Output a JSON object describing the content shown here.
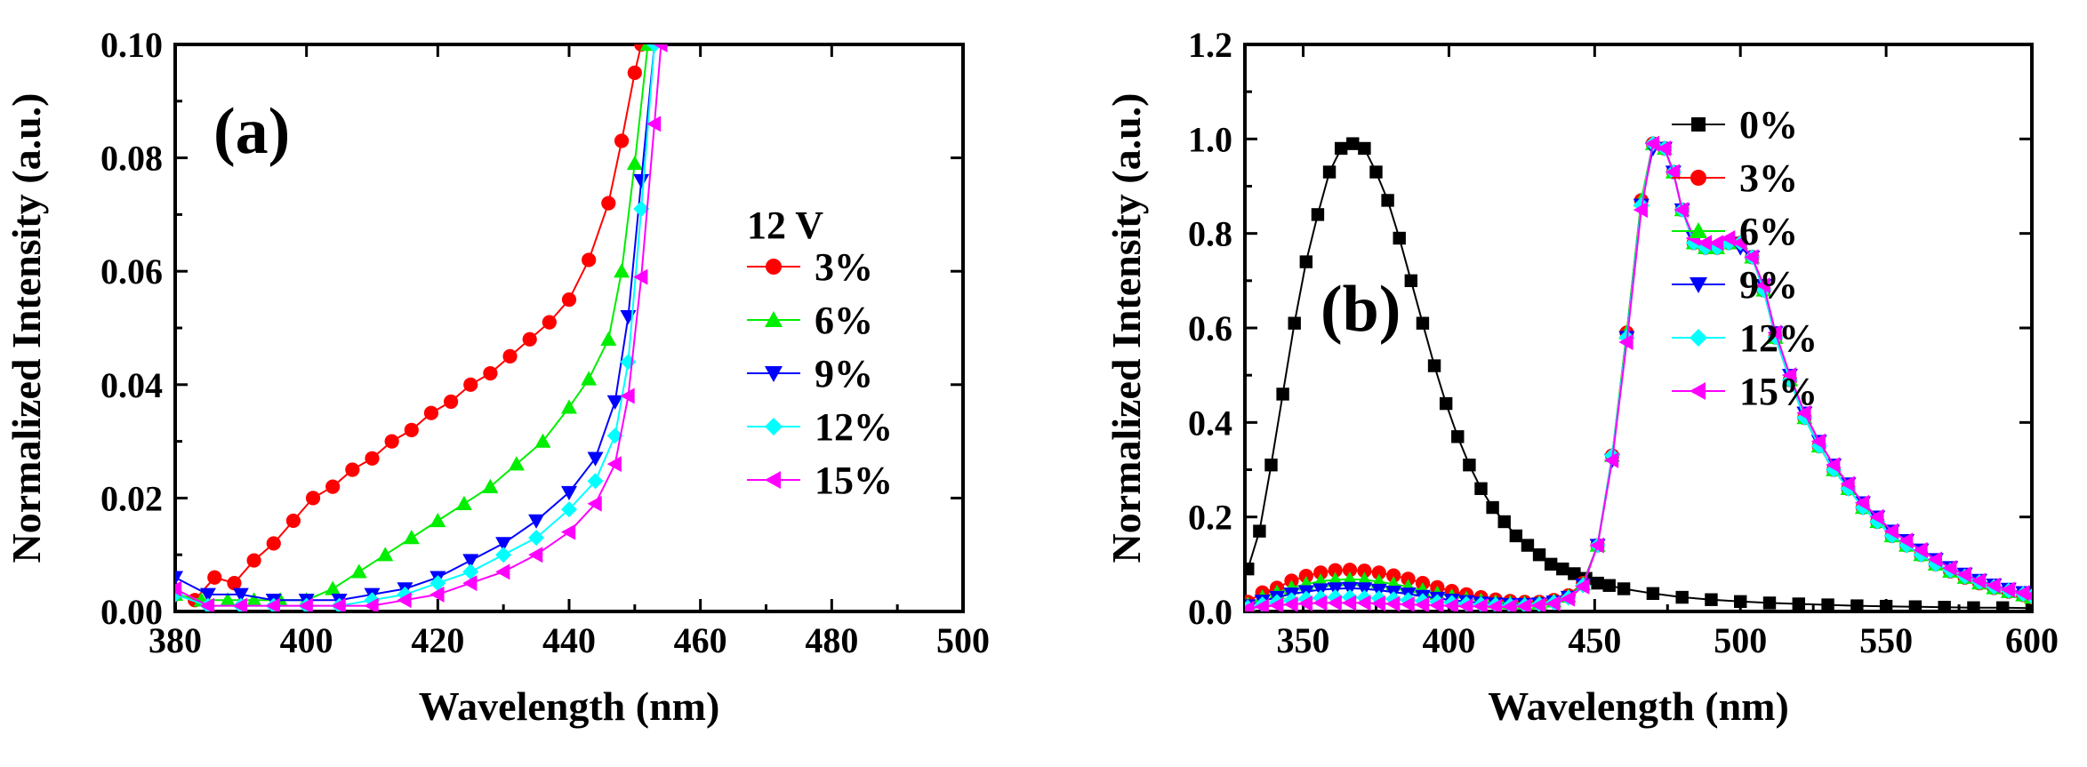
{
  "chart_data": [
    {
      "type": "line",
      "panel_label": "(a)",
      "xlabel": "Wavelength (nm)",
      "ylabel": "Normalized Intensity (a.u.)",
      "xlim": [
        380,
        500
      ],
      "ylim": [
        0,
        0.1
      ],
      "x_ticks": [
        380,
        400,
        420,
        440,
        460,
        480,
        500
      ],
      "y_ticks": [
        0.0,
        0.02,
        0.04,
        0.06,
        0.08,
        0.1
      ],
      "x_tick_labels": [
        "380",
        "400",
        "420",
        "440",
        "460",
        "480",
        "500"
      ],
      "y_tick_labels": [
        "0.00",
        "0.02",
        "0.04",
        "0.06",
        "0.08",
        "0.10"
      ],
      "legend_title": "12 V",
      "legend_position": "center-right",
      "series": [
        {
          "name": "3%",
          "color": "#ff0000",
          "marker": "circle",
          "x": [
            380,
            383,
            386,
            389,
            392,
            395,
            398,
            401,
            404,
            407,
            410,
            413,
            416,
            419,
            422,
            425,
            428,
            431,
            434,
            437,
            440,
            443,
            446,
            448,
            450,
            451
          ],
          "y": [
            0.003,
            0.002,
            0.006,
            0.005,
            0.009,
            0.012,
            0.016,
            0.02,
            0.022,
            0.025,
            0.027,
            0.03,
            0.032,
            0.035,
            0.037,
            0.04,
            0.042,
            0.045,
            0.048,
            0.051,
            0.055,
            0.062,
            0.072,
            0.083,
            0.095,
            0.1
          ]
        },
        {
          "name": "6%",
          "color": "#00ee00",
          "marker": "triangle-up",
          "x": [
            380,
            384,
            388,
            392,
            396,
            400,
            404,
            408,
            412,
            416,
            420,
            424,
            428,
            432,
            436,
            440,
            443,
            446,
            448,
            450,
            452
          ],
          "y": [
            0.003,
            0.002,
            0.002,
            0.002,
            0.002,
            0.002,
            0.004,
            0.007,
            0.01,
            0.013,
            0.016,
            0.019,
            0.022,
            0.026,
            0.03,
            0.036,
            0.041,
            0.048,
            0.06,
            0.079,
            0.1
          ]
        },
        {
          "name": "9%",
          "color": "#0000ff",
          "marker": "triangle-down",
          "x": [
            380,
            385,
            390,
            395,
            400,
            405,
            410,
            415,
            420,
            425,
            430,
            435,
            440,
            444,
            447,
            449,
            451,
            453
          ],
          "y": [
            0.006,
            0.003,
            0.003,
            0.002,
            0.002,
            0.002,
            0.003,
            0.004,
            0.006,
            0.009,
            0.012,
            0.016,
            0.021,
            0.027,
            0.037,
            0.052,
            0.076,
            0.1
          ]
        },
        {
          "name": "12%",
          "color": "#00ffff",
          "marker": "diamond",
          "x": [
            380,
            385,
            390,
            395,
            400,
            405,
            410,
            415,
            420,
            425,
            430,
            435,
            440,
            444,
            447,
            449,
            451,
            453
          ],
          "y": [
            0.003,
            0.001,
            0.001,
            0.001,
            0.001,
            0.001,
            0.002,
            0.003,
            0.005,
            0.007,
            0.01,
            0.013,
            0.018,
            0.023,
            0.031,
            0.044,
            0.071,
            0.1
          ]
        },
        {
          "name": "15%",
          "color": "#ff00ff",
          "marker": "triangle-left",
          "x": [
            380,
            385,
            390,
            395,
            400,
            405,
            410,
            415,
            420,
            425,
            430,
            435,
            440,
            444,
            447,
            449,
            451,
            453,
            454
          ],
          "y": [
            0.004,
            0.001,
            0.001,
            0.001,
            0.001,
            0.001,
            0.001,
            0.002,
            0.003,
            0.005,
            0.007,
            0.01,
            0.014,
            0.019,
            0.026,
            0.038,
            0.059,
            0.086,
            0.1
          ]
        }
      ]
    },
    {
      "type": "line",
      "panel_label": "(b)",
      "xlabel": "Wavelength (nm)",
      "ylabel": "Normalized Intensity (a.u.)",
      "xlim": [
        330,
        600
      ],
      "ylim": [
        0,
        1.2
      ],
      "x_ticks": [
        350,
        400,
        450,
        500,
        550,
        600
      ],
      "y_ticks": [
        0.0,
        0.2,
        0.4,
        0.6,
        0.8,
        1.0,
        1.2
      ],
      "x_tick_labels": [
        "350",
        "400",
        "450",
        "500",
        "550",
        "600"
      ],
      "y_tick_labels": [
        "0.0",
        "0.2",
        "0.4",
        "0.6",
        "0.8",
        "1.0",
        "1.2"
      ],
      "legend_position": "top-right",
      "series": [
        {
          "name": "0%",
          "color": "#000000",
          "marker": "square",
          "x": [
            331,
            335,
            339,
            343,
            347,
            351,
            355,
            359,
            363,
            367,
            371,
            375,
            379,
            383,
            387,
            391,
            395,
            399,
            403,
            407,
            411,
            415,
            419,
            423,
            427,
            431,
            435,
            439,
            443,
            447,
            451,
            455,
            460,
            470,
            480,
            490,
            500,
            510,
            520,
            530,
            540,
            550,
            560,
            570,
            580,
            590,
            600
          ],
          "y": [
            0.09,
            0.17,
            0.31,
            0.46,
            0.61,
            0.74,
            0.84,
            0.93,
            0.98,
            0.99,
            0.98,
            0.93,
            0.87,
            0.79,
            0.7,
            0.61,
            0.52,
            0.44,
            0.37,
            0.31,
            0.26,
            0.22,
            0.19,
            0.16,
            0.14,
            0.12,
            0.1,
            0.09,
            0.08,
            0.07,
            0.06,
            0.055,
            0.048,
            0.038,
            0.03,
            0.025,
            0.021,
            0.018,
            0.016,
            0.014,
            0.012,
            0.011,
            0.01,
            0.009,
            0.008,
            0.008,
            0.007
          ]
        },
        {
          "name": "3%",
          "color": "#ff0000",
          "marker": "circle",
          "x": [
            331,
            336,
            341,
            346,
            351,
            356,
            361,
            366,
            371,
            376,
            381,
            386,
            391,
            396,
            401,
            406,
            411,
            416,
            421,
            426,
            431,
            436,
            441,
            446,
            451,
            456,
            461,
            466,
            470,
            474,
            477,
            480,
            484,
            488,
            492,
            496,
            500,
            504,
            508,
            512,
            517,
            522,
            527,
            532,
            537,
            542,
            547,
            552,
            557,
            562,
            567,
            572,
            577,
            582,
            587,
            592,
            597,
            600
          ],
          "y": [
            0.02,
            0.04,
            0.05,
            0.065,
            0.075,
            0.082,
            0.087,
            0.088,
            0.086,
            0.082,
            0.076,
            0.069,
            0.06,
            0.051,
            0.043,
            0.036,
            0.03,
            0.025,
            0.022,
            0.02,
            0.02,
            0.024,
            0.034,
            0.06,
            0.14,
            0.33,
            0.59,
            0.87,
            0.99,
            0.98,
            0.93,
            0.85,
            0.78,
            0.77,
            0.77,
            0.78,
            0.78,
            0.75,
            0.68,
            0.58,
            0.49,
            0.41,
            0.35,
            0.3,
            0.26,
            0.22,
            0.19,
            0.16,
            0.14,
            0.12,
            0.1,
            0.085,
            0.072,
            0.06,
            0.05,
            0.042,
            0.035,
            0.03
          ]
        },
        {
          "name": "6%",
          "color": "#00ee00",
          "marker": "triangle-up",
          "x": [
            331,
            336,
            341,
            346,
            351,
            356,
            361,
            366,
            371,
            376,
            381,
            386,
            391,
            396,
            401,
            406,
            411,
            416,
            421,
            426,
            431,
            436,
            441,
            446,
            451,
            456,
            461,
            466,
            470,
            474,
            477,
            480,
            484,
            488,
            492,
            496,
            500,
            504,
            508,
            512,
            517,
            522,
            527,
            532,
            537,
            542,
            547,
            552,
            557,
            562,
            567,
            572,
            577,
            582,
            587,
            592,
            597,
            600
          ],
          "y": [
            0.015,
            0.03,
            0.04,
            0.05,
            0.058,
            0.064,
            0.067,
            0.068,
            0.067,
            0.063,
            0.058,
            0.052,
            0.045,
            0.038,
            0.032,
            0.027,
            0.023,
            0.02,
            0.018,
            0.017,
            0.018,
            0.022,
            0.032,
            0.058,
            0.14,
            0.33,
            0.59,
            0.87,
            0.99,
            0.98,
            0.93,
            0.85,
            0.78,
            0.77,
            0.77,
            0.78,
            0.78,
            0.75,
            0.68,
            0.58,
            0.49,
            0.41,
            0.35,
            0.3,
            0.26,
            0.22,
            0.19,
            0.16,
            0.14,
            0.12,
            0.1,
            0.085,
            0.072,
            0.06,
            0.05,
            0.042,
            0.035,
            0.03
          ]
        },
        {
          "name": "9%",
          "color": "#0000ff",
          "marker": "triangle-down",
          "x": [
            331,
            336,
            341,
            346,
            351,
            356,
            361,
            366,
            371,
            376,
            381,
            386,
            391,
            396,
            401,
            406,
            411,
            416,
            421,
            426,
            431,
            436,
            441,
            446,
            451,
            456,
            461,
            466,
            470,
            474,
            477,
            480,
            484,
            488,
            492,
            496,
            500,
            504,
            508,
            512,
            517,
            522,
            527,
            532,
            537,
            542,
            547,
            552,
            557,
            562,
            567,
            572,
            577,
            582,
            587,
            592,
            597,
            600
          ],
          "y": [
            0.012,
            0.022,
            0.03,
            0.037,
            0.042,
            0.046,
            0.048,
            0.049,
            0.048,
            0.045,
            0.041,
            0.037,
            0.032,
            0.028,
            0.024,
            0.021,
            0.018,
            0.016,
            0.015,
            0.015,
            0.016,
            0.02,
            0.03,
            0.056,
            0.14,
            0.32,
            0.58,
            0.86,
            0.98,
            0.98,
            0.93,
            0.85,
            0.79,
            0.77,
            0.77,
            0.78,
            0.77,
            0.75,
            0.69,
            0.59,
            0.5,
            0.42,
            0.36,
            0.31,
            0.27,
            0.23,
            0.2,
            0.17,
            0.15,
            0.13,
            0.11,
            0.093,
            0.079,
            0.066,
            0.056,
            0.047,
            0.04,
            0.034
          ]
        },
        {
          "name": "12%",
          "color": "#00ffff",
          "marker": "diamond",
          "x": [
            331,
            336,
            341,
            346,
            351,
            356,
            361,
            366,
            371,
            376,
            381,
            386,
            391,
            396,
            401,
            406,
            411,
            416,
            421,
            426,
            431,
            436,
            441,
            446,
            451,
            456,
            461,
            466,
            470,
            474,
            477,
            480,
            484,
            488,
            492,
            496,
            500,
            504,
            508,
            512,
            517,
            522,
            527,
            532,
            537,
            542,
            547,
            552,
            557,
            562,
            567,
            572,
            577,
            582,
            587,
            592,
            597,
            600
          ],
          "y": [
            0.008,
            0.015,
            0.02,
            0.024,
            0.027,
            0.029,
            0.03,
            0.03,
            0.029,
            0.028,
            0.026,
            0.024,
            0.022,
            0.02,
            0.018,
            0.016,
            0.015,
            0.014,
            0.013,
            0.013,
            0.015,
            0.019,
            0.029,
            0.055,
            0.14,
            0.33,
            0.58,
            0.86,
            0.99,
            0.98,
            0.93,
            0.85,
            0.78,
            0.77,
            0.77,
            0.78,
            0.78,
            0.75,
            0.68,
            0.58,
            0.49,
            0.41,
            0.35,
            0.3,
            0.26,
            0.22,
            0.19,
            0.16,
            0.14,
            0.12,
            0.1,
            0.087,
            0.074,
            0.062,
            0.052,
            0.044,
            0.037,
            0.032
          ]
        },
        {
          "name": "15%",
          "color": "#ff00ff",
          "marker": "triangle-left",
          "x": [
            331,
            336,
            341,
            346,
            351,
            356,
            361,
            366,
            371,
            376,
            381,
            386,
            391,
            396,
            401,
            406,
            411,
            416,
            421,
            426,
            431,
            436,
            441,
            446,
            451,
            456,
            461,
            466,
            470,
            474,
            477,
            480,
            484,
            488,
            492,
            496,
            500,
            504,
            508,
            512,
            517,
            522,
            527,
            532,
            537,
            542,
            547,
            552,
            557,
            562,
            567,
            572,
            577,
            582,
            587,
            592,
            597,
            600
          ],
          "y": [
            0.006,
            0.01,
            0.013,
            0.015,
            0.017,
            0.018,
            0.018,
            0.018,
            0.018,
            0.017,
            0.016,
            0.015,
            0.014,
            0.013,
            0.012,
            0.011,
            0.011,
            0.01,
            0.01,
            0.011,
            0.013,
            0.017,
            0.027,
            0.053,
            0.14,
            0.32,
            0.57,
            0.85,
            0.99,
            0.98,
            0.93,
            0.85,
            0.79,
            0.78,
            0.78,
            0.79,
            0.78,
            0.75,
            0.69,
            0.59,
            0.5,
            0.42,
            0.36,
            0.31,
            0.27,
            0.23,
            0.2,
            0.17,
            0.15,
            0.13,
            0.11,
            0.092,
            0.078,
            0.065,
            0.055,
            0.046,
            0.039,
            0.033
          ]
        }
      ]
    }
  ]
}
